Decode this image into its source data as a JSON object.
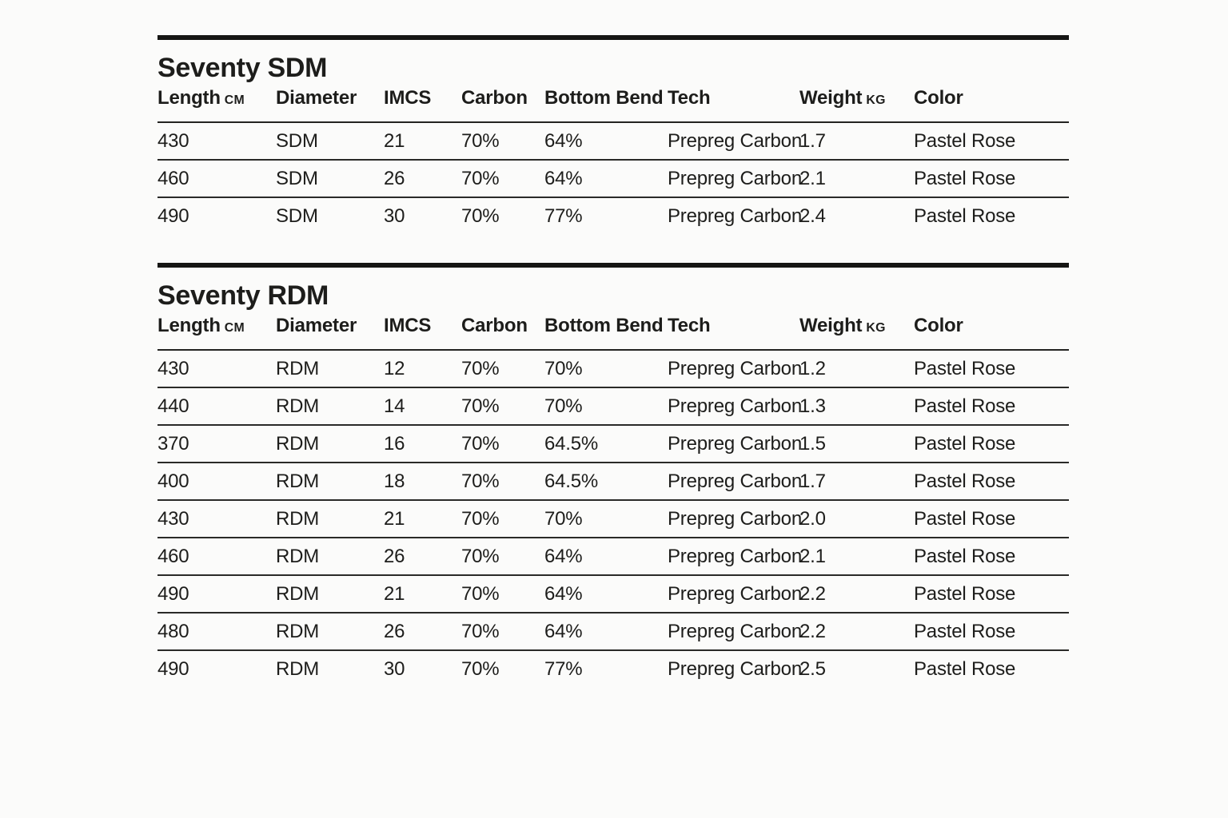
{
  "page": {
    "background_color": "#fbfbfa",
    "text_color": "#1d1d1b",
    "rule_color": "#161614"
  },
  "tables": [
    {
      "title": "Seventy SDM",
      "columns": [
        {
          "label": "Length",
          "unit": "CM"
        },
        {
          "label": "Diameter"
        },
        {
          "label": "IMCS"
        },
        {
          "label": "Carbon"
        },
        {
          "label": "Bottom Bend"
        },
        {
          "label": "Tech"
        },
        {
          "label": "Weight",
          "unit": "KG"
        },
        {
          "label": "Color"
        }
      ],
      "rows": [
        [
          "430",
          "SDM",
          "21",
          "70%",
          "64%",
          "Prepreg Carbon",
          "1.7",
          "Pastel Rose"
        ],
        [
          "460",
          "SDM",
          "26",
          "70%",
          "64%",
          "Prepreg Carbon",
          "2.1",
          "Pastel Rose"
        ],
        [
          "490",
          "SDM",
          "30",
          "70%",
          "77%",
          "Prepreg Carbon",
          "2.4",
          "Pastel Rose"
        ]
      ]
    },
    {
      "title": "Seventy RDM",
      "columns": [
        {
          "label": "Length",
          "unit": "CM"
        },
        {
          "label": "Diameter"
        },
        {
          "label": "IMCS"
        },
        {
          "label": "Carbon"
        },
        {
          "label": "Bottom Bend"
        },
        {
          "label": "Tech"
        },
        {
          "label": "Weight",
          "unit": "KG"
        },
        {
          "label": "Color"
        }
      ],
      "rows": [
        [
          "430",
          "RDM",
          "12",
          "70%",
          "70%",
          "Prepreg Carbon",
          "1.2",
          "Pastel Rose"
        ],
        [
          "440",
          "RDM",
          "14",
          "70%",
          "70%",
          "Prepreg Carbon",
          "1.3",
          "Pastel Rose"
        ],
        [
          "370",
          "RDM",
          "16",
          "70%",
          "64.5%",
          "Prepreg Carbon",
          "1.5",
          "Pastel Rose"
        ],
        [
          "400",
          "RDM",
          "18",
          "70%",
          "64.5%",
          "Prepreg Carbon",
          "1.7",
          "Pastel Rose"
        ],
        [
          "430",
          "RDM",
          "21",
          "70%",
          "70%",
          "Prepreg Carbon",
          "2.0",
          "Pastel Rose"
        ],
        [
          "460",
          "RDM",
          "26",
          "70%",
          "64%",
          "Prepreg Carbon",
          "2.1",
          "Pastel Rose"
        ],
        [
          "490",
          "RDM",
          "21",
          "70%",
          "64%",
          "Prepreg Carbon",
          "2.2",
          "Pastel Rose"
        ],
        [
          "480",
          "RDM",
          "26",
          "70%",
          "64%",
          "Prepreg Carbon",
          "2.2",
          "Pastel Rose"
        ],
        [
          "490",
          "RDM",
          "30",
          "70%",
          "77%",
          "Prepreg Carbon",
          "2.5",
          "Pastel Rose"
        ]
      ]
    }
  ]
}
